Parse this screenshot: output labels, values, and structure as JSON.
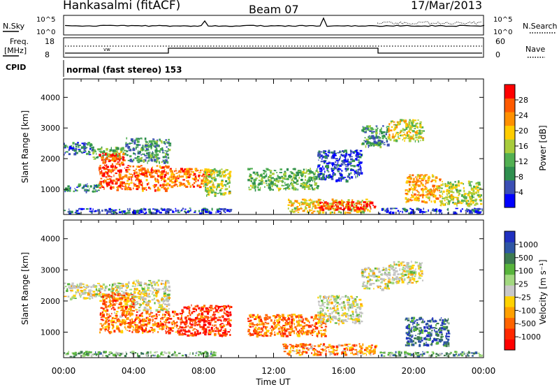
{
  "header": {
    "station": "Hankasalmi (fitACF)",
    "beam": "Beam 07",
    "date": "17/Mar/2013"
  },
  "status_panel": {
    "nsky_label": "N.Sky",
    "nsearch_label": "N.Search",
    "noise_tick_top": "10^5",
    "noise_tick_bottom": "10^0",
    "freq_label_line1": "Freq.",
    "freq_label_line2": "[MHz]",
    "freq_tick_top": "18",
    "freq_tick_bottom": "8",
    "nave_label": "Nave",
    "nave_tick_top": "60",
    "nave_tick_bottom": "0",
    "cpid_label": "CPID",
    "cpid_value": "normal (fast stereo) 153"
  },
  "colors": {
    "power_scale": [
      "#0000ff",
      "#3b4fb4",
      "#2f8f4f",
      "#52b052",
      "#a8cc3c",
      "#ffcc00",
      "#ff9000",
      "#ff5a00",
      "#ff0000"
    ],
    "velocity_scale": [
      "#2030c0",
      "#2e56a4",
      "#3c7a50",
      "#58b43c",
      "#a2d880",
      "#c8c8c8",
      "#ffd200",
      "#ffa000",
      "#ff6400",
      "#ff2800",
      "#ff0000"
    ],
    "ground_scatter": "#c0c0c0"
  },
  "chart_data": [
    {
      "type": "heatmap",
      "name": "power",
      "xlabel": "Time UT",
      "ylabel": "Slant Range [km]",
      "x_tick_labels": [
        "00:00",
        "04:00",
        "08:00",
        "12:00",
        "16:00",
        "20:00",
        "00:00"
      ],
      "y_tick_labels": [
        "1000",
        "2000",
        "3000",
        "4000"
      ],
      "xlim": [
        0,
        24
      ],
      "ylim": [
        180,
        4600
      ],
      "colorbar_label": "Power [dB]",
      "colorbar_ticks": [
        "4",
        "8",
        "12",
        "16",
        "20",
        "24",
        "28"
      ],
      "colorbar_range": [
        0,
        30
      ],
      "regions": [
        {
          "t": [
            0.0,
            1.6
          ],
          "r": [
            2150,
            2550
          ],
          "level": 0.2
        },
        {
          "t": [
            1.6,
            3.5
          ],
          "r": [
            2000,
            2400
          ],
          "level": 0.4
        },
        {
          "t": [
            0.0,
            2.0
          ],
          "r": [
            950,
            1200
          ],
          "level": 0.25
        },
        {
          "t": [
            2.0,
            3.4
          ],
          "r": [
            1000,
            2200
          ],
          "level": 0.85
        },
        {
          "t": [
            3.4,
            6.0
          ],
          "r": [
            1000,
            1800
          ],
          "level": 0.8
        },
        {
          "t": [
            3.5,
            6.0
          ],
          "r": [
            1900,
            2700
          ],
          "level": 0.3
        },
        {
          "t": [
            6.0,
            8.5
          ],
          "r": [
            1100,
            1700
          ],
          "level": 0.75
        },
        {
          "t": [
            8.0,
            9.5
          ],
          "r": [
            800,
            1700
          ],
          "level": 0.5
        },
        {
          "t": [
            10.5,
            14.5
          ],
          "r": [
            1000,
            1700
          ],
          "level": 0.4
        },
        {
          "t": [
            14.5,
            17.0
          ],
          "r": [
            1300,
            2300
          ],
          "level": 0.15
        },
        {
          "t": [
            17.0,
            18.5
          ],
          "r": [
            2400,
            3100
          ],
          "level": 0.3
        },
        {
          "t": [
            18.5,
            20.5
          ],
          "r": [
            2600,
            3300
          ],
          "level": 0.55
        },
        {
          "t": [
            19.5,
            21.5
          ],
          "r": [
            600,
            1500
          ],
          "level": 0.7
        },
        {
          "t": [
            21.5,
            23.8
          ],
          "r": [
            500,
            1300
          ],
          "level": 0.5
        },
        {
          "t": [
            12.8,
            17.5
          ],
          "r": [
            250,
            700
          ],
          "level": 0.6
        },
        {
          "t": [
            14.5,
            17.8
          ],
          "r": [
            350,
            620
          ],
          "level": 0.95
        },
        {
          "t": [
            0.0,
            9.5
          ],
          "r": [
            200,
            400
          ],
          "level": 0.15
        },
        {
          "t": [
            18.0,
            24.0
          ],
          "r": [
            200,
            400
          ],
          "level": 0.1
        }
      ]
    },
    {
      "type": "heatmap",
      "name": "velocity",
      "xlabel": "Time UT",
      "ylabel": "Slant Range [km]",
      "x_tick_labels": [
        "00:00",
        "04:00",
        "08:00",
        "12:00",
        "16:00",
        "20:00",
        "00:00"
      ],
      "y_tick_labels": [
        "1000",
        "2000",
        "3000",
        "4000"
      ],
      "xlim": [
        0,
        24
      ],
      "ylim": [
        180,
        4600
      ],
      "colorbar_label": "Velocity [m s⁻¹]",
      "colorbar_ticks": [
        "1000",
        "500",
        "100",
        "25",
        "-25",
        "-100",
        "-500",
        "-1000"
      ],
      "colorbar_range": [
        -1000,
        1000
      ],
      "regions": [
        {
          "t": [
            0.0,
            3.5
          ],
          "r": [
            2100,
            2600
          ],
          "level": 0.5
        },
        {
          "t": [
            3.5,
            6.0
          ],
          "r": [
            1700,
            2700
          ],
          "level": 0.5
        },
        {
          "t": [
            2.0,
            4.0
          ],
          "r": [
            1000,
            2300
          ],
          "level": 0.75
        },
        {
          "t": [
            4.0,
            6.5
          ],
          "r": [
            1000,
            1700
          ],
          "level": 0.8
        },
        {
          "t": [
            6.5,
            9.5
          ],
          "r": [
            900,
            1900
          ],
          "level": 0.88
        },
        {
          "t": [
            10.5,
            15.0
          ],
          "r": [
            900,
            1600
          ],
          "level": 0.75
        },
        {
          "t": [
            12.5,
            17.8
          ],
          "r": [
            300,
            650
          ],
          "level": 0.72
        },
        {
          "t": [
            14.5,
            17.0
          ],
          "r": [
            1300,
            2200
          ],
          "level": 0.5
        },
        {
          "t": [
            17.0,
            18.5
          ],
          "r": [
            2400,
            3100
          ],
          "level": 0.5
        },
        {
          "t": [
            18.5,
            20.5
          ],
          "r": [
            2600,
            3300
          ],
          "level": 0.5
        },
        {
          "t": [
            19.5,
            22.0
          ],
          "r": [
            600,
            1500
          ],
          "level": 0.15
        },
        {
          "t": [
            0.0,
            9.0
          ],
          "r": [
            200,
            400
          ],
          "level": 0.35
        },
        {
          "t": [
            18.0,
            24.0
          ],
          "r": [
            200,
            400
          ],
          "level": 0.3
        }
      ]
    }
  ]
}
